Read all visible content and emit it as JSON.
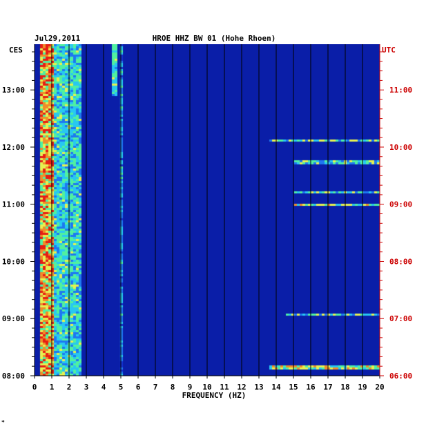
{
  "chart_data": {
    "type": "heatmap",
    "date": "Jul29,2011",
    "title": "HROE HHZ BW 01 (Hohe Rhoen)",
    "left_timezone": "CES",
    "right_timezone": "UTC",
    "xlabel": "FREQUENCY (HZ)",
    "xlim": [
      0,
      20
    ],
    "x_ticks": [
      "0",
      "1",
      "2",
      "3",
      "4",
      "5",
      "6",
      "7",
      "8",
      "9",
      "10",
      "11",
      "12",
      "13",
      "14",
      "15",
      "16",
      "17",
      "18",
      "19",
      "20"
    ],
    "left_time_ticks": [
      "08:00",
      "09:00",
      "10:00",
      "11:00",
      "12:00",
      "13:00"
    ],
    "right_time_ticks": [
      "06:00",
      "07:00",
      "08:00",
      "09:00",
      "10:00",
      "11:00"
    ],
    "time_range_ces": [
      "08:00",
      "13:48"
    ],
    "colorscale": [
      "#0a1ea8",
      "#1432d2",
      "#1e78f0",
      "#28c8f0",
      "#50f0a0",
      "#e6f050",
      "#f08c28",
      "#e61e14"
    ],
    "features": [
      {
        "name": "microseism band",
        "freq_range": [
          0.3,
          1.0
        ],
        "intensity": "high"
      },
      {
        "name": "secondary band",
        "freq_range": [
          1.0,
          2.7
        ],
        "intensity": "medium"
      },
      {
        "name": "narrow line",
        "freq_hz": 4.6,
        "time_range_ces": [
          "12:55",
          "13:48"
        ],
        "intensity": "medium"
      },
      {
        "name": "narrow line",
        "freq_hz": 5.0,
        "time_range_ces": [
          "08:00",
          "13:48"
        ],
        "intensity": "low"
      },
      {
        "name": "high-frequency burst",
        "freq_range": [
          13.5,
          20
        ],
        "time_ces": "12:08",
        "intensity": "medium"
      },
      {
        "name": "high-frequency burst",
        "freq_range": [
          15,
          20
        ],
        "time_ces": "11:45",
        "intensity": "medium"
      },
      {
        "name": "high-frequency burst",
        "freq_range": [
          15,
          20
        ],
        "time_ces": "11:13",
        "intensity": "medium"
      },
      {
        "name": "high-frequency burst",
        "freq_range": [
          15,
          20
        ],
        "time_ces": "11:00",
        "intensity": "high"
      },
      {
        "name": "high-frequency burst",
        "freq_range": [
          14.5,
          20
        ],
        "time_ces": "09:05",
        "intensity": "medium"
      },
      {
        "name": "high-frequency burst",
        "freq_range": [
          13.5,
          20
        ],
        "time_ces": "08:10",
        "intensity": "high"
      }
    ]
  },
  "footer_mark": "*"
}
